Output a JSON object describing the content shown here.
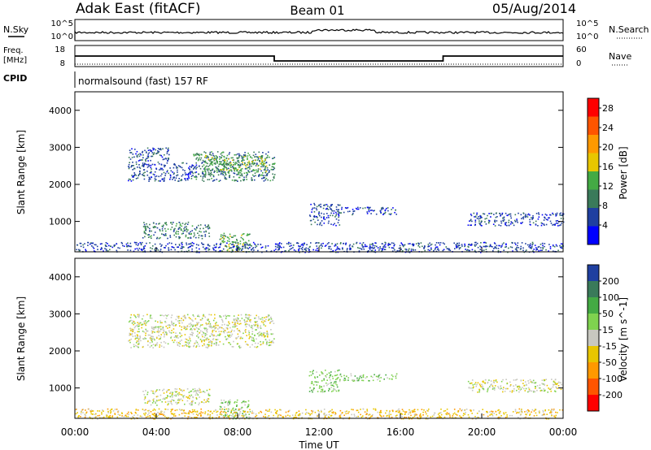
{
  "header": {
    "station": "Adak East (fitACF)",
    "beam": "Beam 01",
    "date": "05/Aug/2014"
  },
  "colors": {
    "scale": [
      "#0000ff",
      "#1f3fa0",
      "#3a7a5a",
      "#44aa44",
      "#e8c600",
      "#ff9900",
      "#ff5500",
      "#ff0000"
    ],
    "velocity": [
      "#1f3fa0",
      "#3a7a5a",
      "#44aa44",
      "#7fd24f",
      "#c8c8c0",
      "#e8c600",
      "#ff9900",
      "#ff5500",
      "#ff0000"
    ]
  },
  "panels": {
    "nsky": {
      "left_label": "N.Sky",
      "left_ticks": [
        "10^5",
        "10^0"
      ],
      "right_label": "N.Search",
      "right_ticks": [
        "10^5",
        "10^0"
      ]
    },
    "freq": {
      "left_label_1": "Freq.",
      "left_label_2": "[MHz]",
      "left_ticks": [
        "18",
        "8"
      ],
      "right_label": "Nave",
      "right_ticks": [
        "60",
        "0"
      ]
    },
    "cpid": {
      "label": "CPID",
      "text": "normalsound (fast) 157 RF"
    }
  },
  "chart_data": [
    {
      "type": "heatmap",
      "title": "",
      "ylabel": "Slant Range [km]",
      "ylim": [
        180,
        4500
      ],
      "yticks": [
        "1000",
        "2000",
        "3000",
        "4000"
      ],
      "colorbar": {
        "label": "Power [dB]",
        "ticks": [
          "4",
          "8",
          "12",
          "16",
          "20",
          "24",
          "28"
        ],
        "range": [
          0,
          30
        ]
      },
      "echo_regions": [
        {
          "t0": 2.6,
          "t1": 4.6,
          "r0": 2100,
          "r1": 3000,
          "level": 1
        },
        {
          "t0": 4.6,
          "t1": 6.0,
          "r0": 2100,
          "r1": 2600,
          "level": 1
        },
        {
          "t0": 5.8,
          "t1": 9.8,
          "r0": 2100,
          "r1": 2900,
          "level": 2
        },
        {
          "t0": 6.3,
          "t1": 9.4,
          "r0": 2300,
          "r1": 2800,
          "level": 3
        },
        {
          "t0": 3.3,
          "t1": 6.6,
          "r0": 550,
          "r1": 1000,
          "level": 2
        },
        {
          "t0": 7.1,
          "t1": 8.6,
          "r0": 180,
          "r1": 700,
          "level": 3
        },
        {
          "t0": 13.0,
          "t1": 15.8,
          "r0": 1200,
          "r1": 1400,
          "level": 1
        },
        {
          "t0": 11.5,
          "t1": 13.0,
          "r0": 900,
          "r1": 1500,
          "level": 1
        },
        {
          "t0": 19.3,
          "t1": 24.0,
          "r0": 900,
          "r1": 1250,
          "level": 1
        },
        {
          "t0": 0.0,
          "t1": 24.0,
          "r0": 180,
          "r1": 450,
          "level": 1
        }
      ]
    },
    {
      "type": "heatmap",
      "title": "",
      "ylabel": "Slant Range [km]",
      "xlabel": "Time UT",
      "ylim": [
        180,
        4500
      ],
      "yticks": [
        "1000",
        "2000",
        "3000",
        "4000"
      ],
      "xticks": [
        "00:00",
        "04:00",
        "08:00",
        "12:00",
        "16:00",
        "20:00",
        "00:00"
      ],
      "xlim": [
        0,
        24
      ],
      "colorbar": {
        "label": "Velocity [m s^-1]",
        "ticks": [
          "200",
          "100",
          "50",
          "15",
          "-15",
          "-50",
          "-100",
          "-200"
        ],
        "range": [
          -250,
          250
        ]
      },
      "echo_regions": [
        {
          "t0": 2.6,
          "t1": 9.8,
          "r0": 2100,
          "r1": 3000,
          "level": 4
        },
        {
          "t0": 3.3,
          "t1": 6.6,
          "r0": 550,
          "r1": 1000,
          "level": 4
        },
        {
          "t0": 7.1,
          "t1": 8.6,
          "r0": 180,
          "r1": 700,
          "level": 3
        },
        {
          "t0": 13.0,
          "t1": 15.8,
          "r0": 1200,
          "r1": 1400,
          "level": 3
        },
        {
          "t0": 11.5,
          "t1": 13.0,
          "r0": 900,
          "r1": 1500,
          "level": 3
        },
        {
          "t0": 19.3,
          "t1": 24.0,
          "r0": 900,
          "r1": 1250,
          "level": 4
        },
        {
          "t0": 0.0,
          "t1": 24.0,
          "r0": 180,
          "r1": 450,
          "level": 5
        }
      ]
    }
  ],
  "freq_series": {
    "x": [
      0,
      9.8,
      9.8,
      18.1,
      18.1,
      24
    ],
    "y": [
      13,
      13,
      10.5,
      10.5,
      13,
      13
    ]
  },
  "nave_series": {
    "x": [
      0,
      24
    ],
    "y": [
      5,
      5
    ]
  }
}
